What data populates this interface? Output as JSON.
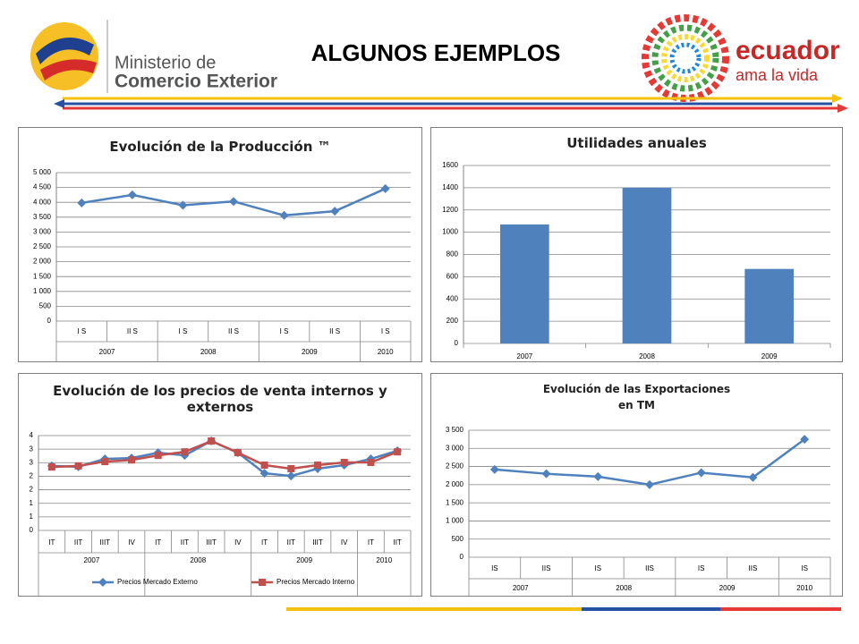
{
  "header": {
    "title": "ALGUNOS EJEMPLOS",
    "left_logo": [
      "Ministerio de",
      "Comercio Exterior"
    ],
    "right_logo": [
      "ecuador",
      "ama la vida"
    ]
  },
  "chart_data": [
    {
      "type": "line",
      "title": "Evolución de la Producción ™",
      "categories": [
        "I S",
        "II S",
        "I S",
        "II S",
        "I S",
        "II S",
        "I S"
      ],
      "groups": [
        "2007",
        null,
        "2008",
        null,
        "2009",
        null,
        "2010"
      ],
      "values": [
        3980,
        4250,
        3900,
        4030,
        3560,
        3700,
        4460
      ],
      "color": "#4f81bd",
      "marker": "diamond",
      "ylim": [
        0,
        5000
      ],
      "yticks": [
        0,
        500,
        {
          "value": 1000,
          "label": "1 000"
        },
        {
          "value": 1500,
          "label": "1 500"
        },
        {
          "value": 2000,
          "label": "2 000"
        },
        {
          "value": 2500,
          "label": "2 500"
        },
        {
          "value": 3000,
          "label": "3 000"
        },
        {
          "value": 3500,
          "label": "3 500"
        },
        {
          "value": 4000,
          "label": "4 000"
        },
        {
          "value": 4500,
          "label": "4 500"
        },
        {
          "value": 5000,
          "label": "5 000"
        }
      ],
      "grid": true
    },
    {
      "type": "bar",
      "title": "Utilidades anuales",
      "categories": [
        "2007",
        "2008",
        "2009"
      ],
      "values": [
        1070,
        1400,
        670
      ],
      "color": "#4f81bd",
      "ylim": [
        0,
        1600
      ],
      "yticks": [
        0,
        200,
        400,
        600,
        800,
        1000,
        1200,
        1400,
        1600
      ],
      "grid": true
    },
    {
      "type": "line",
      "title": "Evolución de los precios de venta internos y externos",
      "categories": [
        "IT",
        "IIT",
        "IIIT",
        "IV",
        "IT",
        "IIT",
        "IIIT",
        "IV",
        "IT",
        "IIT",
        "IIIT",
        "IV",
        "IT",
        "IIT"
      ],
      "groups": [
        "2007",
        null,
        null,
        null,
        "2008",
        null,
        null,
        null,
        "2009",
        null,
        null,
        null,
        "2010",
        null
      ],
      "series": [
        {
          "name": "Precios Mercado Externo",
          "color": "#4f81bd",
          "marker": "diamond",
          "values": [
            2.38,
            2.35,
            2.64,
            2.67,
            2.87,
            2.77,
            3.3,
            2.87,
            2.11,
            2.01,
            2.28,
            2.41,
            2.64,
            2.94
          ]
        },
        {
          "name": "Precios Mercado Interno",
          "color": "#c0504d",
          "marker": "square",
          "values": [
            2.34,
            2.38,
            2.54,
            2.6,
            2.77,
            2.9,
            3.3,
            2.87,
            2.41,
            2.28,
            2.41,
            2.51,
            2.51,
            2.9
          ]
        }
      ],
      "ylim": [
        0,
        3.5
      ],
      "yticks": [
        0,
        {
          "value": 0.5,
          "label": "1"
        },
        1,
        {
          "value": 1.5,
          "label": "2"
        },
        2,
        {
          "value": 2.5,
          "label": "3"
        },
        3,
        {
          "value": 3.5,
          "label": "4"
        }
      ],
      "grid": true,
      "legend": "bottom"
    },
    {
      "type": "line",
      "title": "Evolución de las Exportaciones",
      "subtitle": "en TM",
      "categories": [
        "IS",
        "IIS",
        "IS",
        "IIS",
        "IS",
        "IIS",
        "IS"
      ],
      "groups": [
        "2007",
        null,
        "2008",
        null,
        "2009",
        null,
        "2010"
      ],
      "values": [
        2420,
        2300,
        2220,
        2000,
        2330,
        2200,
        3250
      ],
      "color": "#4f81bd",
      "marker": "diamond",
      "ylim": [
        0,
        3500
      ],
      "yticks": [
        0,
        500,
        {
          "value": 1000,
          "label": "1 000"
        },
        {
          "value": 1500,
          "label": "1 500"
        },
        {
          "value": 2000,
          "label": "2 000"
        },
        {
          "value": 2500,
          "label": "2 500"
        },
        {
          "value": 3000,
          "label": "3 000"
        },
        {
          "value": 3500,
          "label": "3 500"
        }
      ],
      "grid": true
    }
  ]
}
